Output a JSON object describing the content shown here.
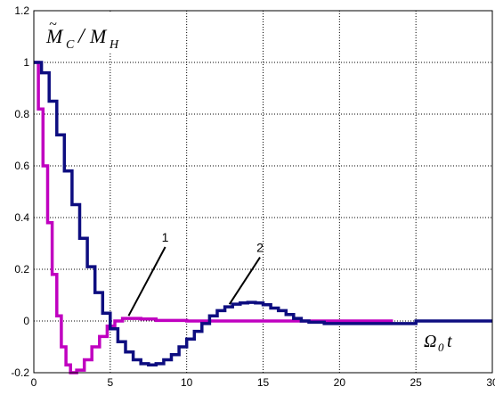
{
  "chart_data": {
    "type": "line",
    "xlim": [
      0,
      30
    ],
    "ylim": [
      -0.2,
      1.2
    ],
    "x_ticks": [
      0,
      5,
      10,
      15,
      20,
      25,
      30
    ],
    "y_ticks": [
      -0.2,
      0,
      0.2,
      0.4,
      0.6,
      0.8,
      1,
      1.2
    ],
    "x_tick_labels": [
      "0",
      "5",
      "10",
      "15",
      "20",
      "25",
      "30"
    ],
    "y_tick_labels": [
      "-0.2",
      "0",
      "0.2",
      "0.4",
      "0.6",
      "0.8",
      "1",
      "1.2"
    ],
    "grid": "dotted",
    "ylabel": "M̃C/MH",
    "xlabel": "Ω0t",
    "colors": {
      "curve1": "#c000c0",
      "curve2": "#0d0d80"
    },
    "series": [
      {
        "callout": "1",
        "x": [
          0,
          0.3,
          0.6,
          0.9,
          1.2,
          1.5,
          1.8,
          2.1,
          2.4,
          2.8,
          3.3,
          3.8,
          4.3,
          4.8,
          5.3,
          5.8,
          6.3,
          7,
          8,
          10,
          15,
          20,
          23.5
        ],
        "y": [
          1.0,
          0.82,
          0.6,
          0.38,
          0.18,
          0.02,
          -0.1,
          -0.17,
          -0.2,
          -0.19,
          -0.15,
          -0.1,
          -0.06,
          -0.02,
          0.0,
          0.01,
          0.01,
          0.008,
          0.002,
          0.0,
          0.0,
          0.0,
          0.0
        ]
      },
      {
        "callout": "2",
        "x": [
          0,
          0.5,
          1,
          1.5,
          2,
          2.5,
          3,
          3.5,
          4,
          4.5,
          5,
          5.5,
          6,
          6.5,
          7,
          7.5,
          8,
          8.5,
          9,
          9.5,
          10,
          10.5,
          11,
          11.5,
          12,
          12.5,
          13,
          13.5,
          14,
          14.5,
          15,
          15.5,
          16,
          16.5,
          17,
          17.5,
          18,
          19,
          20,
          21,
          22,
          23,
          24,
          25,
          26,
          27,
          28,
          29,
          30
        ],
        "y": [
          1.0,
          0.96,
          0.85,
          0.72,
          0.58,
          0.45,
          0.32,
          0.21,
          0.11,
          0.03,
          -0.03,
          -0.08,
          -0.12,
          -0.15,
          -0.165,
          -0.17,
          -0.165,
          -0.15,
          -0.13,
          -0.1,
          -0.07,
          -0.04,
          -0.01,
          0.02,
          0.04,
          0.055,
          0.065,
          0.07,
          0.072,
          0.07,
          0.063,
          0.05,
          0.04,
          0.025,
          0.01,
          0.0,
          -0.005,
          -0.01,
          -0.01,
          -0.01,
          -0.01,
          -0.01,
          -0.01,
          0.0,
          0.0,
          0.0,
          0.0,
          0.0,
          0.0
        ]
      }
    ],
    "annotations": [
      {
        "text": "1",
        "at": [
          6.2,
          0.02
        ],
        "label_at": [
          8.6,
          0.3
        ]
      },
      {
        "text": "2",
        "at": [
          12.8,
          0.065
        ],
        "label_at": [
          14.8,
          0.26
        ]
      }
    ]
  }
}
